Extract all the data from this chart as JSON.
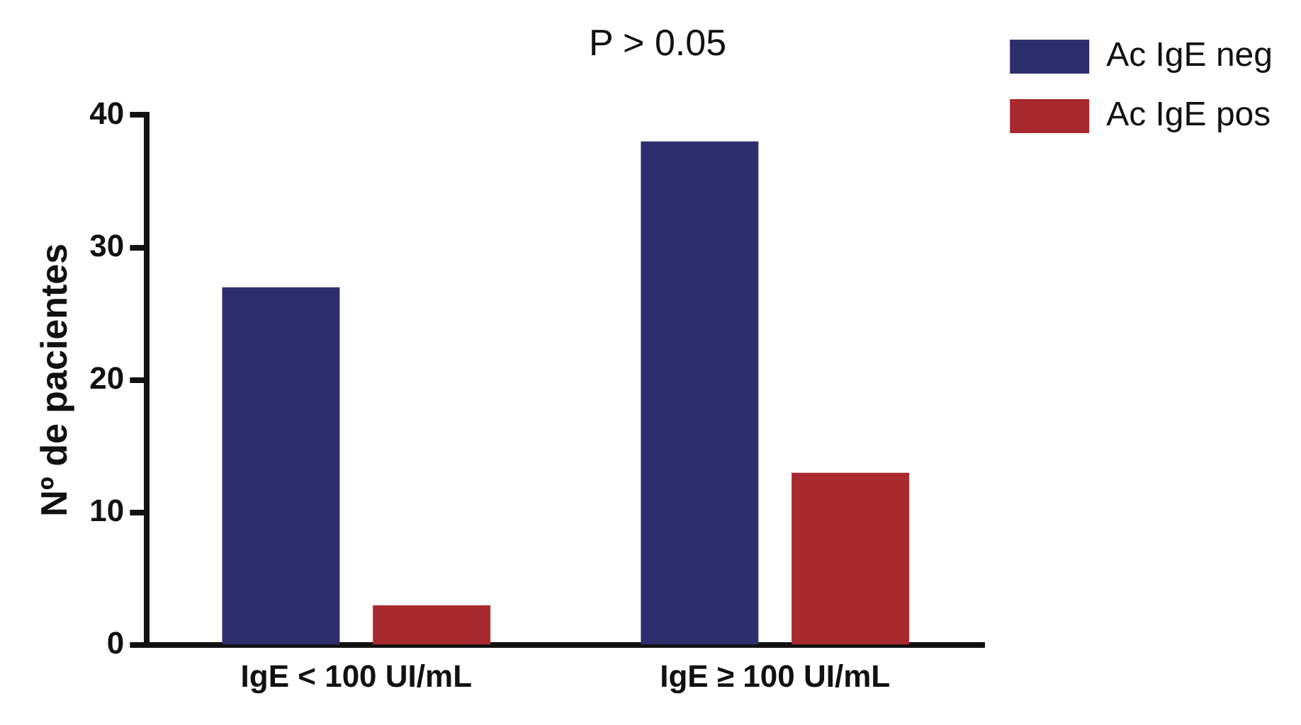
{
  "chart_data": {
    "type": "bar",
    "title": "P > 0.05",
    "ylabel": "Nº de pacientes",
    "categories": [
      "IgE < 100 UI/mL",
      "IgE ≥ 100 UI/mL"
    ],
    "series": [
      {
        "name": "Ac IgE neg",
        "color": "#2e2e6e",
        "values": [
          27,
          38
        ]
      },
      {
        "name": "Ac IgE pos",
        "color": "#a82a2e",
        "values": [
          3,
          13
        ]
      }
    ],
    "ylim": [
      0,
      40
    ],
    "yticks": [
      0,
      10,
      20,
      30,
      40
    ],
    "legend": "top right"
  }
}
